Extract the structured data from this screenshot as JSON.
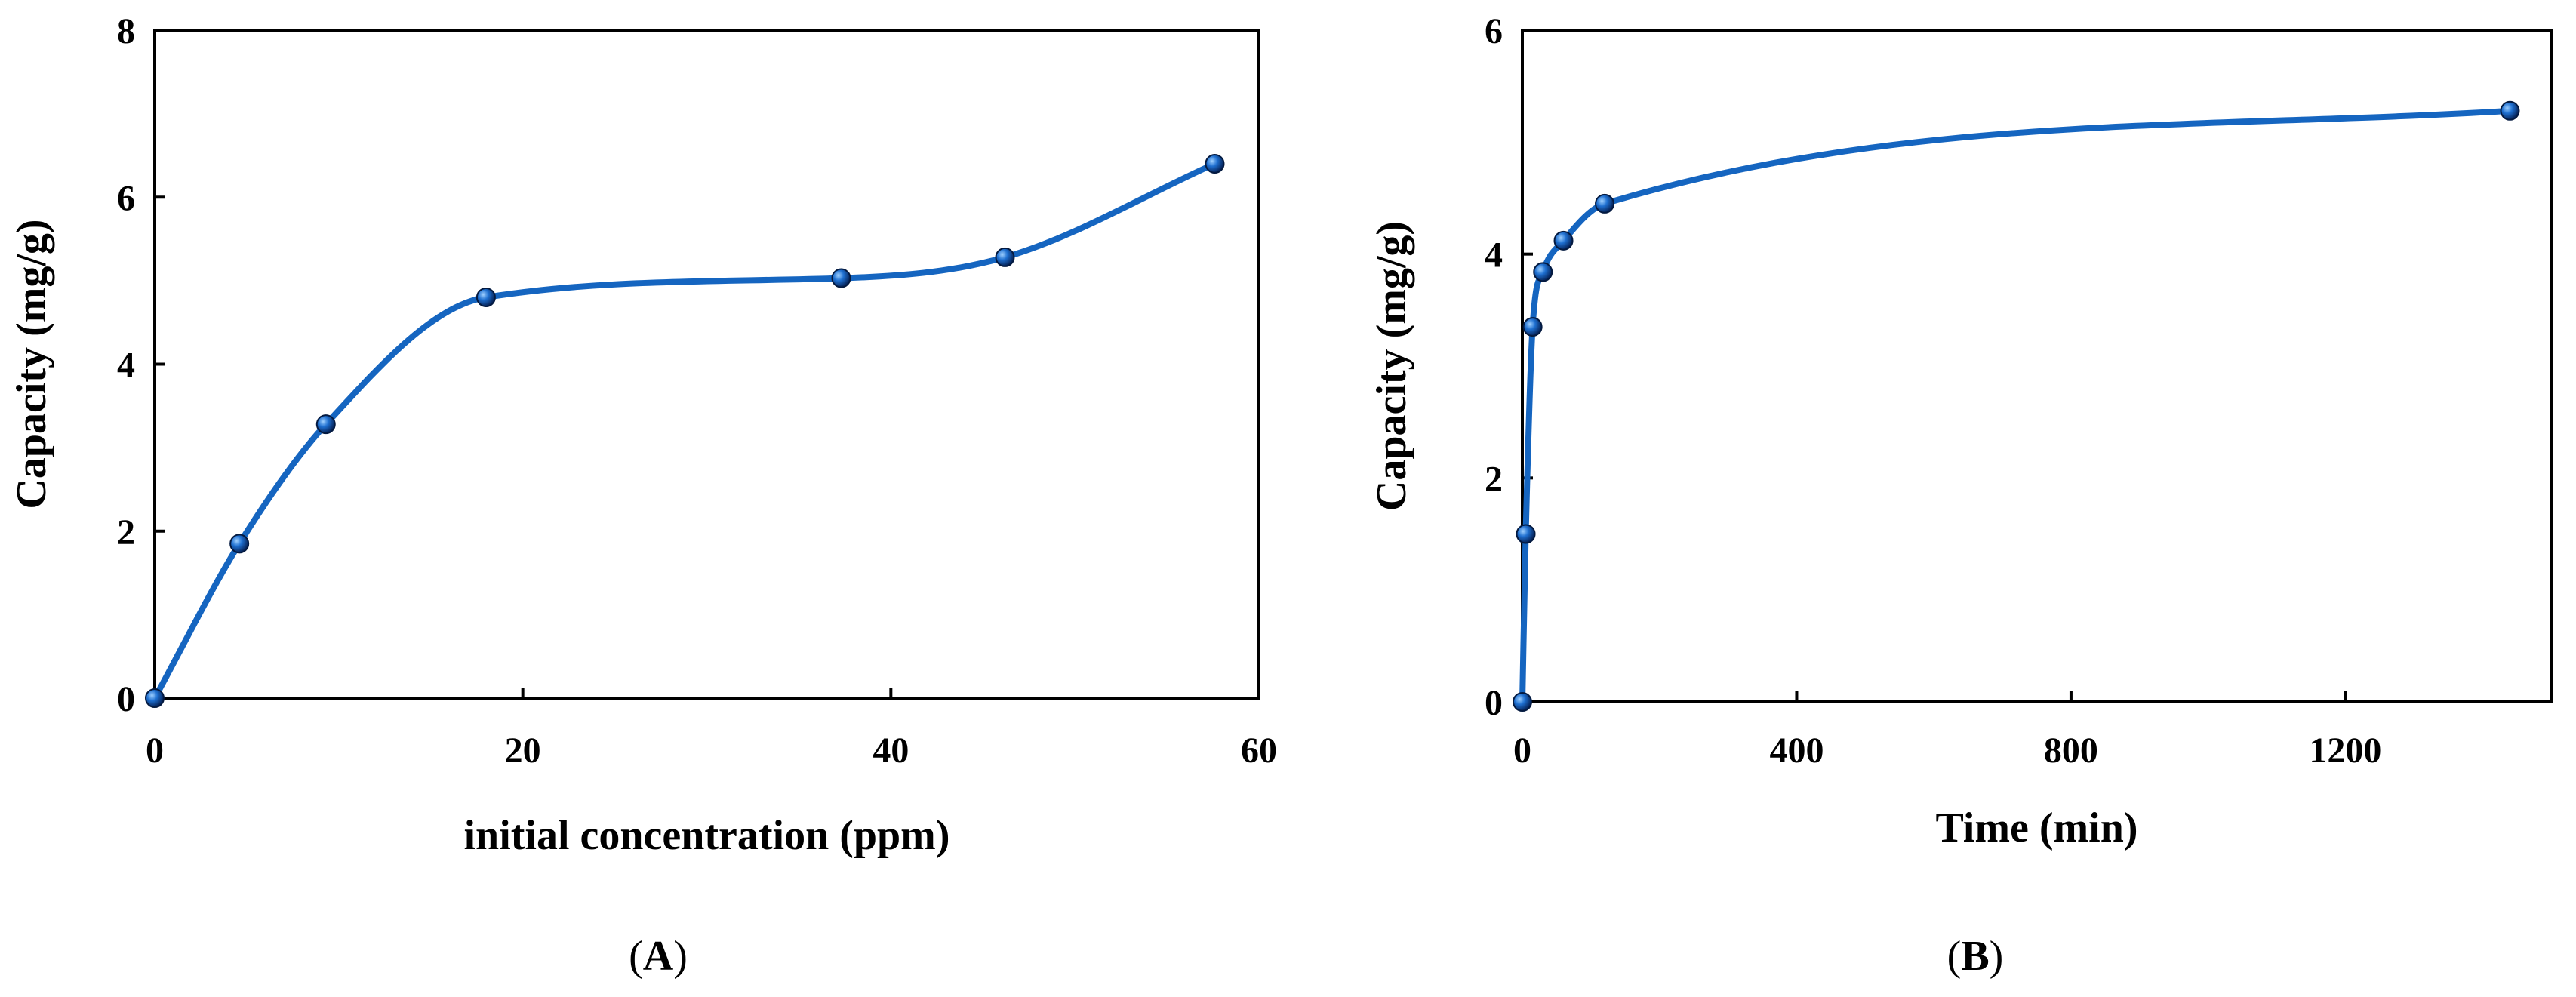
{
  "chart_data": [
    {
      "type": "line",
      "panel_label_prefix": "(",
      "panel_label": "A",
      "panel_label_suffix": ")",
      "xlabel": "initial concentration (ppm)",
      "ylabel": "Capacity (mg/g)",
      "xlim": [
        0,
        60
      ],
      "ylim": [
        0,
        8
      ],
      "xticks": [
        0,
        20,
        40,
        60
      ],
      "yticks": [
        0,
        2,
        4,
        6,
        8
      ],
      "x": [
        0,
        4.6,
        9.3,
        18,
        37.3,
        46.2,
        57.6
      ],
      "y": [
        0,
        1.85,
        3.28,
        4.8,
        5.03,
        5.28,
        6.4
      ],
      "series_color": "#1565c0",
      "marker_color": "#0b4fa8"
    },
    {
      "type": "line",
      "panel_label_prefix": "(",
      "panel_label": "B",
      "panel_label_suffix": ")",
      "xlabel": "Time (min)",
      "ylabel": "Capacity (mg/g)",
      "xlim": [
        0,
        1500
      ],
      "ylim": [
        0,
        6
      ],
      "xticks": [
        0,
        400,
        800,
        1200
      ],
      "yticks": [
        0,
        2,
        4,
        6
      ],
      "x": [
        0,
        5,
        15,
        30,
        60,
        120,
        1440
      ],
      "y": [
        0,
        1.5,
        3.35,
        3.84,
        4.12,
        4.45,
        5.28
      ],
      "series_color": "#1565c0",
      "marker_color": "#0b4fa8"
    }
  ]
}
